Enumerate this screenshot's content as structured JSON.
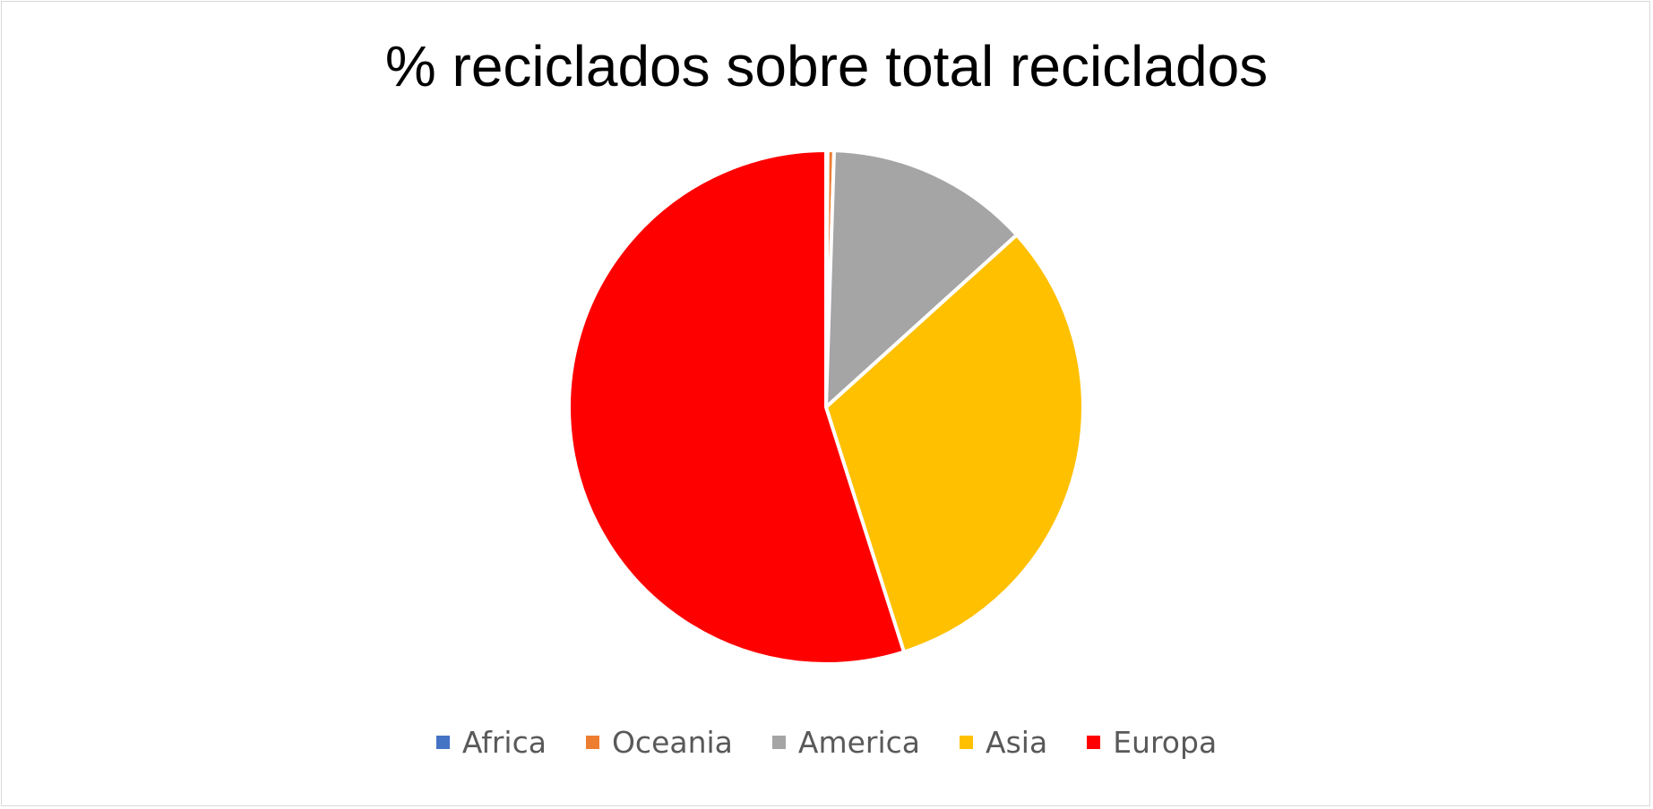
{
  "chart_data": {
    "type": "pie",
    "title": "% reciclados sobre total reciclados",
    "categories": [
      "Africa",
      "Oceania",
      "America",
      "Asia",
      "Europa"
    ],
    "values": [
      0.1,
      0.4,
      12.8,
      31.8,
      54.9
    ],
    "colors": [
      "#4472C4",
      "#ED7D31",
      "#A5A5A5",
      "#FFC000",
      "#FF0000"
    ],
    "start_angle_deg": 0,
    "direction": "clockwise",
    "legend_position": "bottom"
  }
}
